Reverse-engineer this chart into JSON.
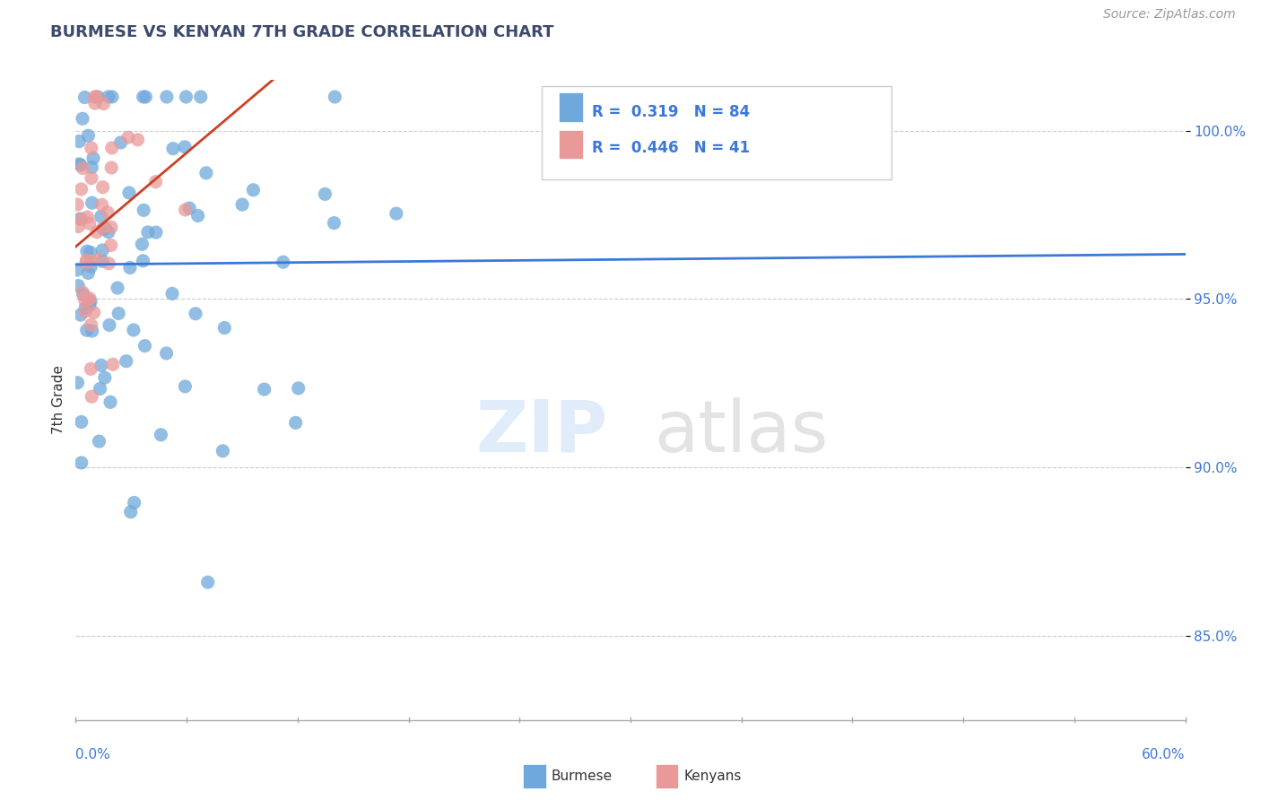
{
  "title": "BURMESE VS KENYAN 7TH GRADE CORRELATION CHART",
  "source": "Source: ZipAtlas.com",
  "ylabel": "7th Grade",
  "xlim": [
    0.0,
    60.0
  ],
  "ylim": [
    82.5,
    101.5
  ],
  "yticks": [
    85.0,
    90.0,
    95.0,
    100.0
  ],
  "ytick_labels": [
    "85.0%",
    "90.0%",
    "95.0%",
    "100.0%"
  ],
  "burmese_R": 0.319,
  "burmese_N": 84,
  "kenyan_R": 0.446,
  "kenyan_N": 41,
  "burmese_color": "#6fa8dc",
  "kenyan_color": "#ea9999",
  "burmese_line_color": "#3c78d8",
  "kenyan_line_color": "#cc4125",
  "background_color": "#ffffff"
}
